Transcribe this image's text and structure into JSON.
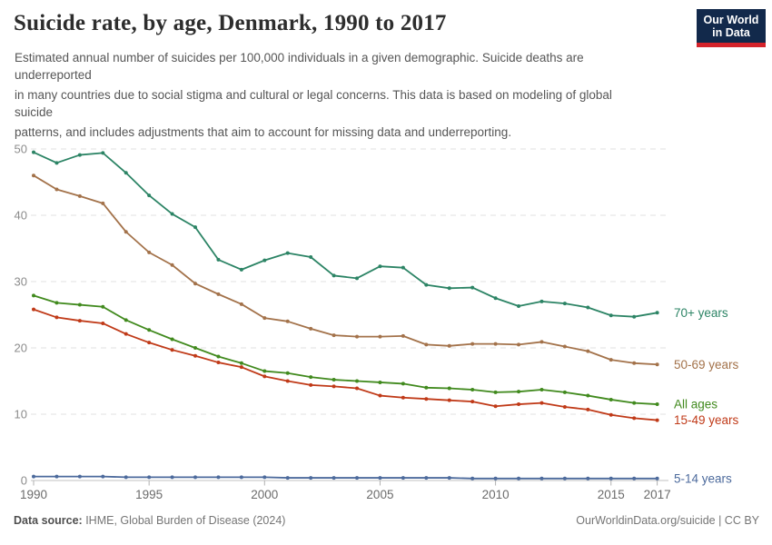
{
  "header": {
    "title": "Suicide rate, by age, Denmark, 1990 to 2017",
    "subtitle_lines": [
      "Estimated annual number of suicides per 100,000 individuals in a given demographic. Suicide deaths are",
      "underreported",
      "in many countries due to social stigma and cultural or legal concerns. This data is based on modeling of global",
      "suicide",
      "patterns, and includes adjustments that aim to account for missing data and underreporting."
    ],
    "logo": {
      "line1": "Our World",
      "line2": "in Data"
    }
  },
  "chart_data": {
    "type": "line",
    "title": "Suicide rate, by age, Denmark, 1990 to 2017",
    "xlabel": "",
    "ylabel": "",
    "ylim": [
      0,
      50
    ],
    "yticks": [
      0,
      10,
      20,
      30,
      40,
      50
    ],
    "xticks": [
      1990,
      1995,
      2000,
      2005,
      2010,
      2015,
      2017
    ],
    "grid": "dashed-horizontal",
    "legend_position": "right-end-labels",
    "x": [
      1990,
      1991,
      1992,
      1993,
      1994,
      1995,
      1996,
      1997,
      1998,
      1999,
      2000,
      2001,
      2002,
      2003,
      2004,
      2005,
      2006,
      2007,
      2008,
      2009,
      2010,
      2011,
      2012,
      2013,
      2014,
      2015,
      2016,
      2017
    ],
    "series": [
      {
        "name": "70+ years",
        "color": "#2c8465",
        "values": [
          49.5,
          47.9,
          49.1,
          49.4,
          46.4,
          43.0,
          40.2,
          38.2,
          33.3,
          31.8,
          33.2,
          34.3,
          33.7,
          30.9,
          30.5,
          32.3,
          32.1,
          29.5,
          29.0,
          29.1,
          27.5,
          26.3,
          27.0,
          26.7,
          26.1,
          24.9,
          24.7,
          25.3
        ]
      },
      {
        "name": "50-69 years",
        "color": "#a3724a",
        "values": [
          46.0,
          43.9,
          42.9,
          41.8,
          37.5,
          34.4,
          32.5,
          29.7,
          28.1,
          26.6,
          24.5,
          24.0,
          22.9,
          21.9,
          21.7,
          21.7,
          21.8,
          20.5,
          20.3,
          20.6,
          20.6,
          20.5,
          20.9,
          20.2,
          19.5,
          18.2,
          17.7,
          17.5
        ]
      },
      {
        "name": "All ages",
        "color": "#418a1e",
        "values": [
          27.9,
          26.8,
          26.5,
          26.2,
          24.2,
          22.7,
          21.3,
          20.0,
          18.7,
          17.7,
          16.5,
          16.2,
          15.6,
          15.2,
          15.0,
          14.8,
          14.6,
          14.0,
          13.9,
          13.7,
          13.3,
          13.4,
          13.7,
          13.3,
          12.8,
          12.2,
          11.7,
          11.5
        ]
      },
      {
        "name": "15-49 years",
        "color": "#c03a18",
        "values": [
          25.8,
          24.6,
          24.1,
          23.7,
          22.1,
          20.8,
          19.7,
          18.8,
          17.8,
          17.1,
          15.7,
          15.0,
          14.4,
          14.2,
          13.9,
          12.8,
          12.5,
          12.3,
          12.1,
          11.9,
          11.2,
          11.5,
          11.7,
          11.1,
          10.7,
          9.9,
          9.4,
          9.1
        ]
      },
      {
        "name": "5-14 years",
        "color": "#4c6a9c",
        "values": [
          0.6,
          0.6,
          0.6,
          0.6,
          0.5,
          0.5,
          0.5,
          0.5,
          0.5,
          0.5,
          0.5,
          0.4,
          0.4,
          0.4,
          0.4,
          0.4,
          0.4,
          0.4,
          0.4,
          0.3,
          0.3,
          0.3,
          0.3,
          0.3,
          0.3,
          0.3,
          0.3,
          0.3
        ]
      }
    ]
  },
  "footer": {
    "source_label": "Data source:",
    "source_text": " IHME, Global Burden of Disease (2024)",
    "credit": "OurWorldinData.org/suicide | CC BY"
  }
}
